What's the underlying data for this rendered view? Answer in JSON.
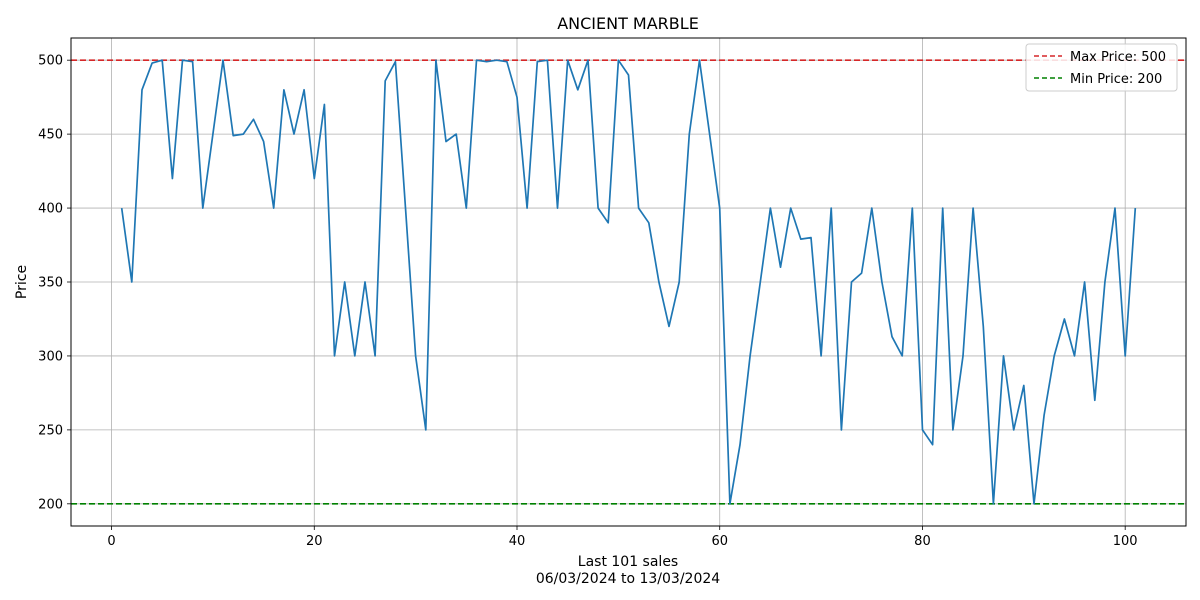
{
  "chart_data": {
    "type": "line",
    "title": "ANCIENT MARBLE",
    "xlabel": "Last 101 sales",
    "xlabel_sub": "06/03/2024 to 13/03/2024",
    "ylabel": "Price",
    "xlim": [
      -4,
      106
    ],
    "ylim": [
      185,
      515
    ],
    "xticks": [
      0,
      20,
      40,
      60,
      80,
      100
    ],
    "yticks": [
      200,
      250,
      300,
      350,
      400,
      450,
      500
    ],
    "grid": true,
    "legend_position": "top-right",
    "colors": {
      "series": "#1f77b4",
      "max": "#d62728",
      "min": "#008000",
      "grid": "#b0b0b0"
    },
    "series": [
      {
        "x": [
          1,
          2,
          3,
          4,
          5,
          6,
          7,
          8,
          9,
          10,
          11,
          12,
          13,
          14,
          15,
          16,
          17,
          18,
          19,
          20,
          21,
          22,
          23,
          24,
          25,
          26,
          27,
          28,
          29,
          30,
          31,
          32,
          33,
          34,
          35,
          36,
          37,
          38,
          39,
          40,
          41,
          42,
          43,
          44,
          45,
          46,
          47,
          48,
          49,
          50,
          51,
          52,
          53,
          54,
          55,
          56,
          57,
          58,
          59,
          60,
          61,
          62,
          63,
          64,
          65,
          66,
          67,
          68,
          69,
          70,
          71,
          72,
          73,
          74,
          75,
          76,
          77,
          78,
          79,
          80,
          81,
          82,
          83,
          84,
          85,
          86,
          87,
          88,
          89,
          90,
          91,
          92,
          93,
          94,
          95,
          96,
          97,
          98,
          99,
          100,
          101
        ],
        "values": [
          400,
          350,
          480,
          498,
          500,
          420,
          500,
          499,
          400,
          450,
          500,
          449,
          450,
          460,
          445,
          400,
          480,
          450,
          480,
          420,
          470,
          300,
          350,
          300,
          350,
          300,
          486,
          499,
          400,
          300,
          250,
          500,
          445,
          450,
          400,
          500,
          499,
          500,
          499,
          475,
          400,
          499,
          500,
          400,
          500,
          480,
          500,
          400,
          390,
          500,
          490,
          400,
          390,
          350,
          320,
          350,
          450,
          500,
          450,
          400,
          200,
          240,
          300,
          350,
          400,
          360,
          400,
          379,
          380,
          300,
          400,
          250,
          350,
          356,
          400,
          350,
          313,
          300,
          400,
          250,
          240,
          400,
          250,
          300,
          400,
          320,
          200,
          300,
          250,
          280,
          200,
          260,
          300,
          325,
          300,
          350,
          270,
          350,
          400,
          300,
          400
        ]
      }
    ],
    "reference_lines": [
      {
        "name": "Max Price: 500",
        "value": 500
      },
      {
        "name": "Min Price: 200",
        "value": 200
      }
    ]
  }
}
